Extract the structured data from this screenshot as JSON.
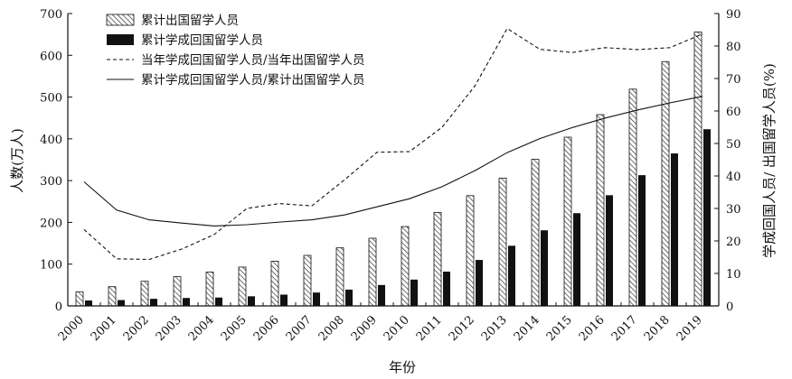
{
  "chart_data": {
    "type": "bar",
    "categories": [
      "2000",
      "2001",
      "2002",
      "2003",
      "2004",
      "2005",
      "2006",
      "2007",
      "2008",
      "2009",
      "2010",
      "2011",
      "2012",
      "2013",
      "2014",
      "2015",
      "2016",
      "2017",
      "2018",
      "2019"
    ],
    "series": [
      {
        "name": "累计出国留学人员",
        "kind": "bar",
        "axis": "left",
        "pattern": "hatched",
        "values": [
          34,
          46,
          59,
          70,
          81,
          93,
          107,
          121,
          139,
          162,
          190,
          224,
          264,
          306,
          351,
          404,
          458,
          519,
          585,
          656
        ]
      },
      {
        "name": "累计学成回国留学人员",
        "kind": "bar",
        "axis": "left",
        "pattern": "solid",
        "values": [
          13,
          14,
          17,
          19,
          20,
          23,
          27,
          32,
          39,
          50,
          63,
          82,
          110,
          144,
          181,
          222,
          265,
          313,
          365,
          423
        ]
      },
      {
        "name": "当年学成回国留学人员/当年出国留学人员",
        "kind": "line",
        "axis": "right",
        "dash": "dashed",
        "values": [
          23.5,
          14.5,
          14.3,
          17.5,
          22.0,
          30.0,
          31.5,
          30.8,
          38.8,
          47.3,
          47.5,
          55.0,
          67.6,
          85.4,
          79.0,
          78.0,
          79.5,
          78.9,
          79.5,
          83.7
        ]
      },
      {
        "name": "累计学成回国留学人员/累计出国留学人员",
        "kind": "line",
        "axis": "right",
        "dash": "solid",
        "values": [
          38.2,
          29.5,
          26.5,
          25.5,
          24.6,
          25.0,
          25.8,
          26.5,
          28.0,
          30.5,
          33.0,
          36.7,
          41.6,
          47.2,
          51.5,
          54.9,
          57.8,
          60.3,
          62.5,
          64.5
        ]
      }
    ],
    "xlabel": "年份",
    "ylabel": "人数(万人)",
    "y2label": "学成回国人员/ 出国留学人员(%)",
    "ylim": [
      0,
      700
    ],
    "y2lim": [
      0,
      90
    ],
    "yticks": [
      0,
      100,
      200,
      300,
      400,
      500,
      600,
      700
    ],
    "y2ticks": [
      0,
      10,
      20,
      30,
      40,
      50,
      60,
      70,
      80,
      90
    ],
    "grid": false,
    "legend_position": "top-left"
  }
}
